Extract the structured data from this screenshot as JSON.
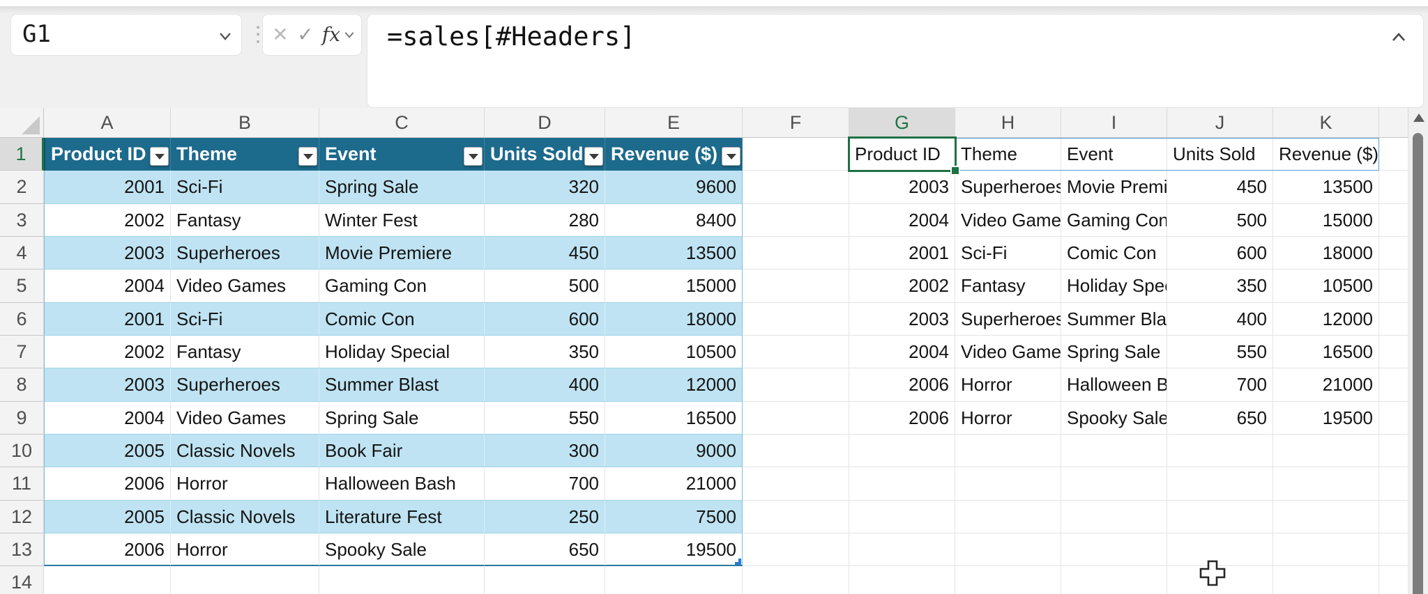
{
  "formula_bar": {
    "name_box_value": "G1",
    "cancel_icon": "✕",
    "enter_icon": "✓",
    "function_label": "fx",
    "formula": "=sales[#Headers]"
  },
  "grid": {
    "column_letters": [
      "A",
      "B",
      "C",
      "D",
      "E",
      "F",
      "G",
      "H",
      "I",
      "J",
      "K"
    ],
    "row_numbers": [
      "1",
      "2",
      "3",
      "4",
      "5",
      "6",
      "7",
      "8",
      "9",
      "10",
      "11",
      "12",
      "13",
      "14"
    ],
    "selected_cell": "G1",
    "selected_column": "G",
    "selected_row": "1"
  },
  "left_table": {
    "range": "A1:E13",
    "headers": [
      "Product ID",
      "Theme",
      "Event",
      "Units Sold",
      "Revenue ($)"
    ],
    "rows": [
      [
        2001,
        "Sci-Fi",
        "Spring Sale",
        320,
        9600
      ],
      [
        2002,
        "Fantasy",
        "Winter Fest",
        280,
        8400
      ],
      [
        2003,
        "Superheroes",
        "Movie Premiere",
        450,
        13500
      ],
      [
        2004,
        "Video Games",
        "Gaming Con",
        500,
        15000
      ],
      [
        2001,
        "Sci-Fi",
        "Comic Con",
        600,
        18000
      ],
      [
        2002,
        "Fantasy",
        "Holiday Special",
        350,
        10500
      ],
      [
        2003,
        "Superheroes",
        "Summer Blast",
        400,
        12000
      ],
      [
        2004,
        "Video Games",
        "Spring Sale",
        550,
        16500
      ],
      [
        2005,
        "Classic Novels",
        "Book Fair",
        300,
        9000
      ],
      [
        2006,
        "Horror",
        "Halloween Bash",
        700,
        21000
      ],
      [
        2005,
        "Classic Novels",
        "Literature Fest",
        250,
        7500
      ],
      [
        2006,
        "Horror",
        "Spooky Sale",
        650,
        19500
      ]
    ]
  },
  "spill_result": {
    "range": "G1:K9",
    "headers": [
      "Product ID",
      "Theme",
      "Event",
      "Units Sold",
      "Revenue ($)"
    ],
    "rows": [
      [
        2003,
        "Superheroes",
        "Movie Premiere",
        450,
        13500
      ],
      [
        2004,
        "Video Games",
        "Gaming Con",
        500,
        15000
      ],
      [
        2001,
        "Sci-Fi",
        "Comic Con",
        600,
        18000
      ],
      [
        2002,
        "Fantasy",
        "Holiday Special",
        350,
        10500
      ],
      [
        2003,
        "Superheroes",
        "Summer Blast",
        400,
        12000
      ],
      [
        2004,
        "Video Games",
        "Spring Sale",
        550,
        16500
      ],
      [
        2006,
        "Horror",
        "Halloween Bash",
        700,
        21000
      ],
      [
        2006,
        "Horror",
        "Spooky Sale",
        650,
        19500
      ]
    ]
  },
  "colors": {
    "table_header_bg": "#1c6a8c",
    "table_band": "#bfe3f2",
    "table_bottom_border": "#2879a0",
    "selection_green": "#1e7145",
    "spill_border_blue": "#5b9bd5",
    "header_accent_green": "#217346"
  }
}
